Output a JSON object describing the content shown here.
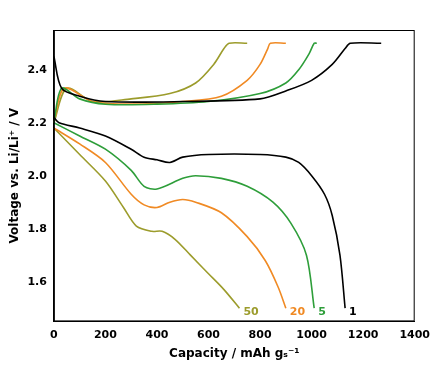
{
  "chart_data": {
    "type": "line",
    "x_label": "Capacity / mAh gₛ⁻¹",
    "y_label": "Voltage vs. Li/Li⁺ / V",
    "xlim": [
      0,
      1400
    ],
    "xticks": [
      0,
      200,
      400,
      600,
      800,
      1000,
      1200,
      1400
    ],
    "ylim": [
      1.45,
      2.55
    ],
    "yticks": [
      1.6,
      1.8,
      {
        "value": 2,
        "label": "2.0"
      },
      2.2,
      2.4
    ],
    "grid": false,
    "series": [
      {
        "name": "1",
        "color": "#000000",
        "x": [
          0,
          20,
          100,
          200,
          300,
          350,
          400,
          450,
          500,
          600,
          800,
          900,
          950,
          1000,
          1050,
          1080,
          1110,
          1130,
          null,
          0,
          30,
          100,
          200,
          500,
          800,
          900,
          1000,
          1080,
          1130,
          1150,
          1270
        ],
        "values": [
          2.22,
          2.2,
          2.18,
          2.15,
          2.1,
          2.07,
          2.06,
          2.05,
          2.07,
          2.08,
          2.08,
          2.07,
          2.05,
          2.0,
          1.93,
          1.85,
          1.7,
          1.5,
          null,
          2.45,
          2.33,
          2.3,
          2.28,
          2.28,
          2.29,
          2.32,
          2.36,
          2.42,
          2.48,
          2.5,
          2.5
        ]
      },
      {
        "name": "5",
        "color": "#2e9e3a",
        "x": [
          0,
          100,
          200,
          300,
          350,
          400,
          500,
          550,
          650,
          750,
          850,
          920,
          980,
          1010,
          null,
          0,
          30,
          100,
          200,
          400,
          600,
          800,
          900,
          950,
          990,
          1010,
          1020
        ],
        "values": [
          2.2,
          2.15,
          2.1,
          2.02,
          1.96,
          1.95,
          1.99,
          2.0,
          1.99,
          1.96,
          1.9,
          1.82,
          1.7,
          1.5,
          null,
          2.2,
          2.33,
          2.29,
          2.27,
          2.27,
          2.28,
          2.31,
          2.35,
          2.4,
          2.46,
          2.5,
          2.5
        ]
      },
      {
        "name": "20",
        "color": "#f08a24",
        "x": [
          0,
          100,
          200,
          300,
          350,
          400,
          450,
          500,
          550,
          650,
          750,
          820,
          870,
          900,
          null,
          0,
          40,
          150,
          300,
          500,
          650,
          750,
          800,
          830,
          840,
          900
        ],
        "values": [
          2.18,
          2.12,
          2.05,
          1.93,
          1.89,
          1.88,
          1.9,
          1.91,
          1.9,
          1.86,
          1.77,
          1.68,
          1.58,
          1.5,
          null,
          2.2,
          2.33,
          2.28,
          2.27,
          2.28,
          2.3,
          2.36,
          2.42,
          2.48,
          2.5,
          2.5
        ]
      },
      {
        "name": "50",
        "color": "#9c9c2c",
        "x": [
          0,
          100,
          200,
          270,
          320,
          380,
          420,
          470,
          530,
          600,
          660,
          720,
          null,
          0,
          50,
          150,
          300,
          450,
          550,
          620,
          660,
          680,
          750
        ],
        "values": [
          2.18,
          2.08,
          1.98,
          1.88,
          1.81,
          1.79,
          1.79,
          1.76,
          1.7,
          1.63,
          1.57,
          1.5,
          null,
          2.2,
          2.33,
          2.28,
          2.29,
          2.31,
          2.35,
          2.42,
          2.48,
          2.5,
          2.5
        ]
      }
    ]
  }
}
